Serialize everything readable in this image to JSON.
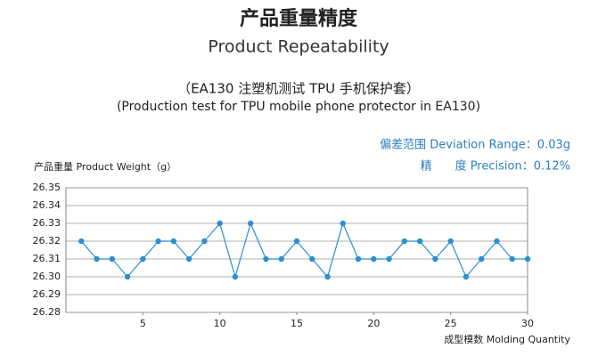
{
  "chart_data": {
    "type": "line",
    "title": "产品重量精度",
    "subtitle": "Product Repeatability",
    "caption_cn": "（EA130 注塑机测试 TPU 手机保护套）",
    "caption_en": "(Production test for TPU mobile phone protector in EA130)",
    "annotations": [
      "偏差范围 Deviation Range：0.03g",
      "精　　度 Precision：0.12%"
    ],
    "ylabel": "产品重量 Product Weight（g）",
    "xlabel": "成型模数 Molding Quantity",
    "x": [
      1,
      2,
      3,
      4,
      5,
      6,
      7,
      8,
      9,
      10,
      11,
      12,
      13,
      14,
      15,
      16,
      17,
      18,
      19,
      20,
      21,
      22,
      23,
      24,
      25,
      26,
      27,
      28,
      29,
      30
    ],
    "series": [
      {
        "name": "Product Weight",
        "color": "#2b8fd0",
        "values": [
          26.32,
          26.31,
          26.31,
          26.3,
          26.31,
          26.32,
          26.32,
          26.31,
          26.32,
          26.33,
          26.3,
          26.33,
          26.31,
          26.31,
          26.32,
          26.31,
          26.3,
          26.33,
          26.31,
          26.31,
          26.31,
          26.32,
          26.32,
          26.31,
          26.32,
          26.3,
          26.31,
          26.32,
          26.31,
          26.31
        ]
      }
    ],
    "xlim": [
      0,
      30
    ],
    "xticks": [
      5,
      10,
      15,
      20,
      25,
      30
    ],
    "ylim": [
      26.28,
      26.35
    ],
    "yticks": [
      26.28,
      26.29,
      {
        "value": 26.3,
        "label": "26.30"
      },
      26.31,
      26.32,
      26.33,
      26.34,
      26.35
    ],
    "grid": true
  }
}
